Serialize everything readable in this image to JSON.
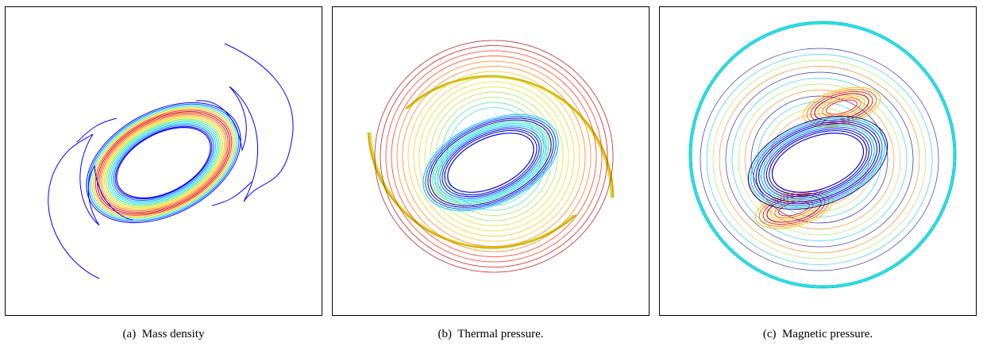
{
  "figure": {
    "panels": [
      {
        "label": "(a)",
        "caption": "Mass density",
        "field": "mass-density"
      },
      {
        "label": "(b)",
        "caption": "Thermal pressure.",
        "field": "thermal-pressure"
      },
      {
        "label": "(c)",
        "caption": "Magnetic pressure.",
        "field": "magnetic-pressure"
      }
    ]
  },
  "colors": {
    "contour_scale": [
      "#00008b",
      "#0000ff",
      "#0060ff",
      "#00bfff",
      "#00e5e5",
      "#40e0a0",
      "#a0e040",
      "#e0e000",
      "#ffc000",
      "#ff7000",
      "#ff2000",
      "#b00000"
    ],
    "frame": "#000000",
    "background": "#ffffff"
  }
}
